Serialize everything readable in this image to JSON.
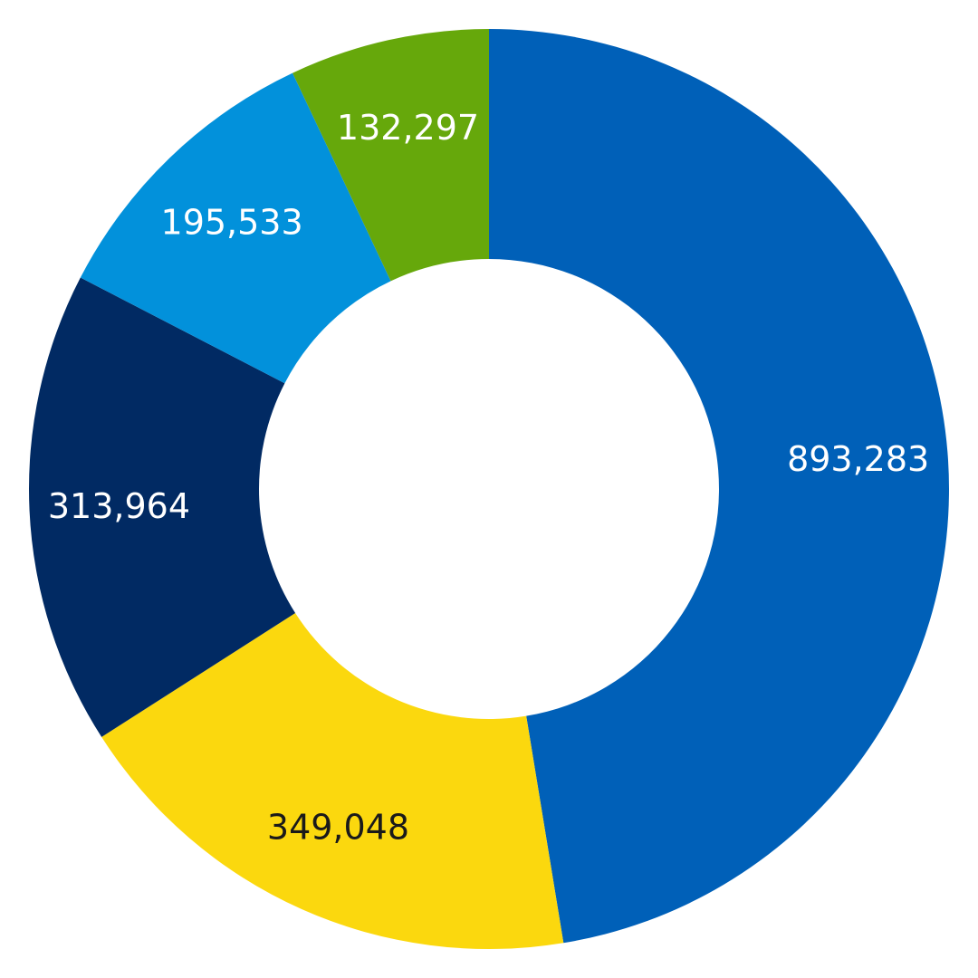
{
  "chart_data": {
    "type": "pie",
    "variant": "donut",
    "slices": [
      {
        "value": 893283,
        "label": "893,283",
        "color": "#0060B8",
        "label_color": "#FFFFFF"
      },
      {
        "value": 349048,
        "label": "349,048",
        "color": "#FBD80E",
        "label_color": "#1A1A1A"
      },
      {
        "value": 313964,
        "label": "313,964",
        "color": "#012A63",
        "label_color": "#FFFFFF"
      },
      {
        "value": 195533,
        "label": "195,533",
        "color": "#0291DB",
        "label_color": "#FFFFFF"
      },
      {
        "value": 132297,
        "label": "132,297",
        "color": "#66A80B",
        "label_color": "#FFFFFF"
      }
    ],
    "start_angle": "top",
    "direction": "clockwise",
    "legend": "none"
  }
}
